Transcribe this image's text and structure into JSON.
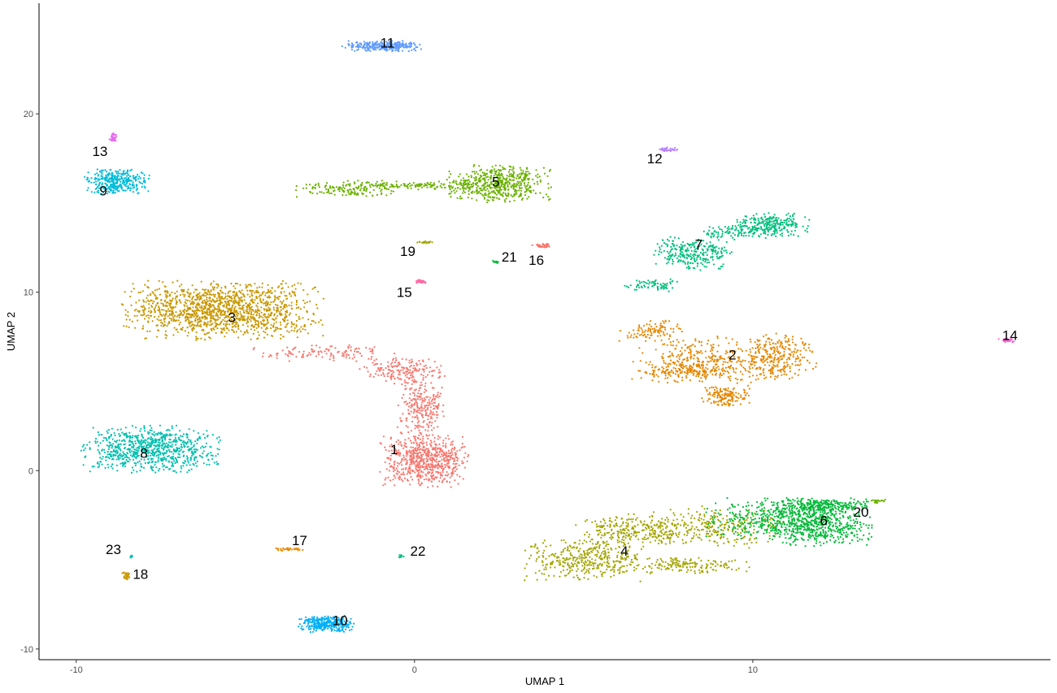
{
  "chart_data": {
    "type": "scatter",
    "xlabel": "UMAP 1",
    "ylabel": "UMAP 2",
    "xlim": [
      -11.1,
      18.8
    ],
    "ylim": [
      -10.6,
      26.2
    ],
    "x_ticks": [
      -10,
      0,
      10
    ],
    "x_tick_labels": [
      "-10",
      "0",
      "10"
    ],
    "y_ticks": [
      -10,
      0,
      10,
      20
    ],
    "y_tick_labels": [
      "-10",
      "0",
      "10",
      "20"
    ],
    "grid": false,
    "legend": "none",
    "clusters": [
      {
        "label": "1",
        "color": "#F8766D",
        "label_xy": [
          -0.6,
          1.2
        ],
        "n": 1200,
        "blobs": [
          [
            0.3,
            0.6,
            1.1,
            1.3,
            0.55
          ],
          [
            0.2,
            3.5,
            0.6,
            1.6,
            0.2
          ],
          [
            -0.3,
            5.6,
            1.1,
            0.6,
            0.15
          ],
          [
            -2.6,
            6.6,
            1.8,
            0.4,
            0.1
          ]
        ]
      },
      {
        "label": "2",
        "color": "#E58700",
        "label_xy": [
          9.4,
          6.5
        ],
        "n": 1000,
        "blobs": [
          [
            8.6,
            6.2,
            1.9,
            1.1,
            0.35
          ],
          [
            10.8,
            6.4,
            0.9,
            1.1,
            0.25
          ],
          [
            7.0,
            7.8,
            0.8,
            0.5,
            0.1
          ],
          [
            8.2,
            5.6,
            1.4,
            0.4,
            0.15
          ],
          [
            9.2,
            4.2,
            0.6,
            0.5,
            0.15
          ]
        ]
      },
      {
        "label": "3",
        "color": "#C99800",
        "label_xy": [
          -5.4,
          8.6
        ],
        "n": 1400,
        "blobs": [
          [
            -5.7,
            9.0,
            2.5,
            1.4,
            1.0
          ]
        ]
      },
      {
        "label": "4",
        "color": "#A3A500",
        "label_xy": [
          6.2,
          -4.5
        ],
        "n": 1100,
        "blobs": [
          [
            5.0,
            -5.0,
            1.5,
            1.0,
            0.35
          ],
          [
            6.5,
            -3.4,
            1.5,
            0.8,
            0.25
          ],
          [
            8.8,
            -3.2,
            1.8,
            1.0,
            0.25
          ],
          [
            8.0,
            -5.3,
            1.6,
            0.4,
            0.15
          ]
        ]
      },
      {
        "label": "5",
        "color": "#6BB100",
        "label_xy": [
          2.4,
          16.2
        ],
        "n": 800,
        "blobs": [
          [
            2.5,
            16.1,
            1.3,
            0.9,
            0.65
          ],
          [
            -2.0,
            15.8,
            1.3,
            0.4,
            0.2
          ],
          [
            0.3,
            16.0,
            1.5,
            0.2,
            0.15
          ]
        ]
      },
      {
        "label": "6",
        "color": "#00BA38",
        "label_xy": [
          12.1,
          -2.8
        ],
        "n": 1100,
        "blobs": [
          [
            12.0,
            -3.0,
            1.3,
            1.1,
            0.5
          ],
          [
            10.5,
            -2.7,
            1.6,
            1.0,
            0.3
          ],
          [
            12.0,
            -1.9,
            1.2,
            0.3,
            0.2
          ]
        ]
      },
      {
        "label": "7",
        "color": "#00BF7D",
        "label_xy": [
          8.4,
          12.7
        ],
        "n": 700,
        "blobs": [
          [
            8.2,
            12.2,
            1.0,
            0.8,
            0.4
          ],
          [
            10.6,
            13.8,
            0.9,
            0.6,
            0.35
          ],
          [
            7.0,
            10.4,
            0.7,
            0.3,
            0.1
          ],
          [
            9.5,
            13.4,
            1.0,
            0.4,
            0.15
          ]
        ]
      },
      {
        "label": "8",
        "color": "#00C0AF",
        "label_xy": [
          -8.0,
          1.0
        ],
        "n": 800,
        "blobs": [
          [
            -7.8,
            1.2,
            1.7,
            1.1,
            1.0
          ]
        ]
      },
      {
        "label": "9",
        "color": "#00BCD8",
        "label_xy": [
          -9.2,
          15.7
        ],
        "n": 350,
        "blobs": [
          [
            -8.8,
            16.2,
            0.8,
            0.6,
            1.0
          ]
        ]
      },
      {
        "label": "10",
        "color": "#00B0F6",
        "label_xy": [
          -2.2,
          -8.4
        ],
        "n": 300,
        "blobs": [
          [
            -2.6,
            -8.6,
            0.7,
            0.4,
            1.0
          ]
        ]
      },
      {
        "label": "11",
        "color": "#619CFF",
        "label_xy": [
          -0.8,
          24.0
        ],
        "n": 300,
        "blobs": [
          [
            -1.0,
            23.8,
            1.0,
            0.25,
            1.0
          ]
        ]
      },
      {
        "label": "12",
        "color": "#B983FF",
        "label_xy": [
          7.1,
          17.5
        ],
        "n": 40,
        "blobs": [
          [
            7.5,
            18.0,
            0.25,
            0.1,
            1.0
          ]
        ]
      },
      {
        "label": "13",
        "color": "#E76BF3",
        "label_xy": [
          -9.3,
          17.9
        ],
        "n": 40,
        "blobs": [
          [
            -8.9,
            18.7,
            0.1,
            0.2,
            1.0
          ]
        ]
      },
      {
        "label": "14",
        "color": "#FD61D1",
        "label_xy": [
          17.6,
          7.6
        ],
        "n": 30,
        "blobs": [
          [
            17.5,
            7.3,
            0.2,
            0.1,
            1.0
          ]
        ]
      },
      {
        "label": "15",
        "color": "#FF67A4",
        "label_xy": [
          -0.3,
          10.0
        ],
        "n": 30,
        "blobs": [
          [
            0.2,
            10.6,
            0.15,
            0.1,
            1.0
          ]
        ]
      },
      {
        "label": "16",
        "color": "#F8766D",
        "label_xy": [
          3.6,
          11.8
        ],
        "n": 40,
        "blobs": [
          [
            3.8,
            12.6,
            0.3,
            0.1,
            1.0
          ]
        ]
      },
      {
        "label": "17",
        "color": "#E58700",
        "label_xy": [
          -3.4,
          -3.9
        ],
        "n": 30,
        "blobs": [
          [
            -3.7,
            -4.4,
            0.35,
            0.08,
            1.0
          ]
        ]
      },
      {
        "label": "18",
        "color": "#C99800",
        "label_xy": [
          -8.1,
          -5.8
        ],
        "n": 30,
        "blobs": [
          [
            -8.5,
            -5.9,
            0.12,
            0.2,
            1.0
          ]
        ]
      },
      {
        "label": "19",
        "color": "#A3A500",
        "label_xy": [
          -0.2,
          12.3
        ],
        "n": 20,
        "blobs": [
          [
            0.3,
            12.8,
            0.25,
            0.06,
            1.0
          ]
        ]
      },
      {
        "label": "20",
        "color": "#6BB100",
        "label_xy": [
          13.2,
          -2.3
        ],
        "n": 20,
        "blobs": [
          [
            13.7,
            -1.7,
            0.2,
            0.1,
            1.0
          ]
        ]
      },
      {
        "label": "21",
        "color": "#00BA38",
        "label_xy": [
          2.8,
          12.0
        ],
        "n": 12,
        "blobs": [
          [
            2.4,
            11.7,
            0.08,
            0.08,
            1.0
          ]
        ]
      },
      {
        "label": "22",
        "color": "#00BF7D",
        "label_xy": [
          0.1,
          -4.5
        ],
        "n": 12,
        "blobs": [
          [
            -0.4,
            -4.8,
            0.08,
            0.08,
            1.0
          ]
        ]
      },
      {
        "label": "23",
        "color": "#00C0AF",
        "label_xy": [
          -8.9,
          -4.4
        ],
        "n": 10,
        "blobs": [
          [
            -8.4,
            -4.8,
            0.05,
            0.08,
            1.0
          ]
        ]
      }
    ]
  }
}
